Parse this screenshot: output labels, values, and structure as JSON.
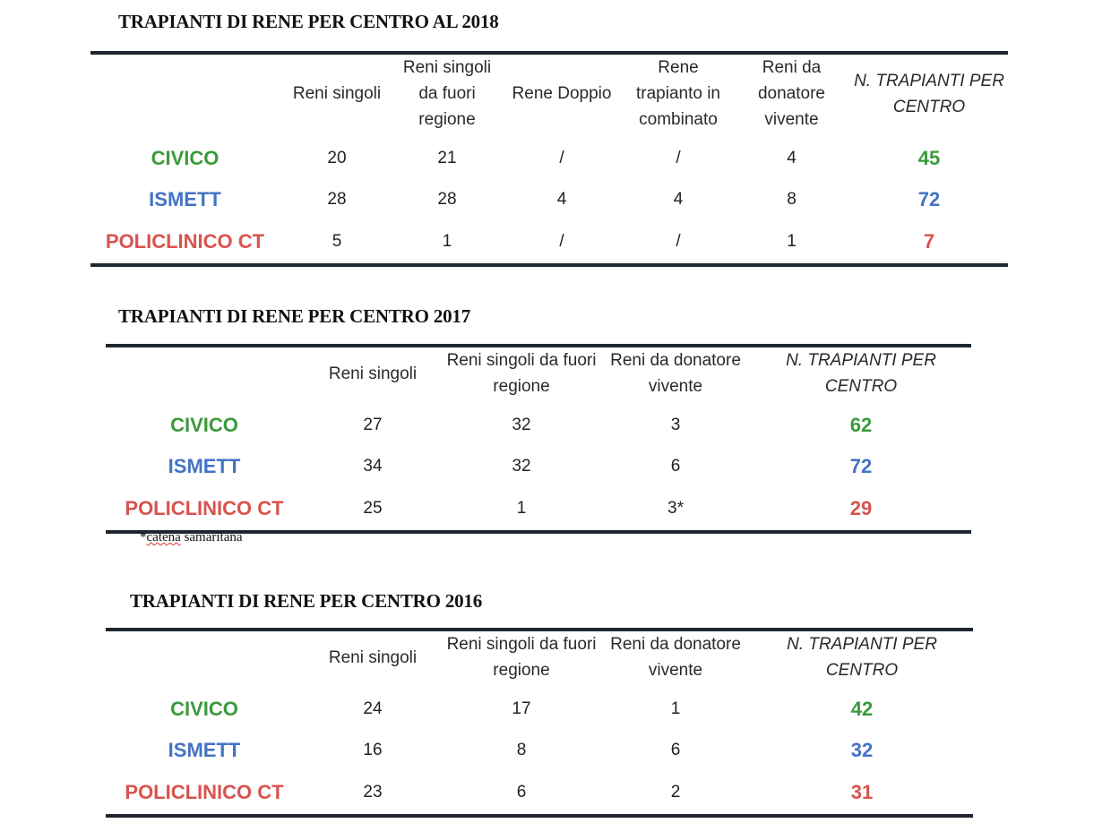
{
  "colors": {
    "civico": "#3a9a3a",
    "ismett": "#4472c4",
    "policlinico": "#d9534f",
    "rule": "#1f2630"
  },
  "tables": [
    {
      "title": "TRAPIANTI DI RENE PER CENTRO AL 2018",
      "headers": [
        "",
        "Reni singoli",
        "Reni singoli da fuori regione",
        "Rene Doppio",
        "Rene trapianto in combinato",
        "Reni da donatore vivente",
        "N. TRAPIANTI PER CENTRO"
      ],
      "rows": [
        {
          "center": "CIVICO",
          "values": [
            "20",
            "21",
            "/",
            "/",
            "4"
          ],
          "total": "45"
        },
        {
          "center": "ISMETT",
          "values": [
            "28",
            "28",
            "4",
            "4",
            "8"
          ],
          "total": "72"
        },
        {
          "center": "POLICLINICO CT",
          "values": [
            "5",
            "1",
            "/",
            "/",
            "1"
          ],
          "total": "7"
        }
      ]
    },
    {
      "title": "TRAPIANTI DI RENE PER CENTRO 2017",
      "headers": [
        "",
        "Reni singoli",
        "Reni singoli da fuori regione",
        "Reni da donatore vivente",
        "N. TRAPIANTI PER CENTRO"
      ],
      "rows": [
        {
          "center": "CIVICO",
          "values": [
            "27",
            "32",
            "3"
          ],
          "total": "62"
        },
        {
          "center": "ISMETT",
          "values": [
            "34",
            "32",
            "6"
          ],
          "total": "72"
        },
        {
          "center": "POLICLINICO CT",
          "values": [
            "25",
            "1",
            "3*"
          ],
          "total": "29"
        }
      ],
      "note": {
        "prefix": "*",
        "word": "catena",
        "rest": " samaritana"
      }
    },
    {
      "title": "TRAPIANTI DI RENE PER CENTRO 2016",
      "headers": [
        "",
        "Reni singoli",
        "Reni singoli da fuori regione",
        "Reni da donatore vivente",
        "N. TRAPIANTI PER CENTRO"
      ],
      "rows": [
        {
          "center": "CIVICO",
          "values": [
            "24",
            "17",
            "1"
          ],
          "total": "42"
        },
        {
          "center": "ISMETT",
          "values": [
            "16",
            "8",
            "6"
          ],
          "total": "32"
        },
        {
          "center": "POLICLINICO CT",
          "values": [
            "23",
            "6",
            "2"
          ],
          "total": "31"
        }
      ]
    }
  ]
}
